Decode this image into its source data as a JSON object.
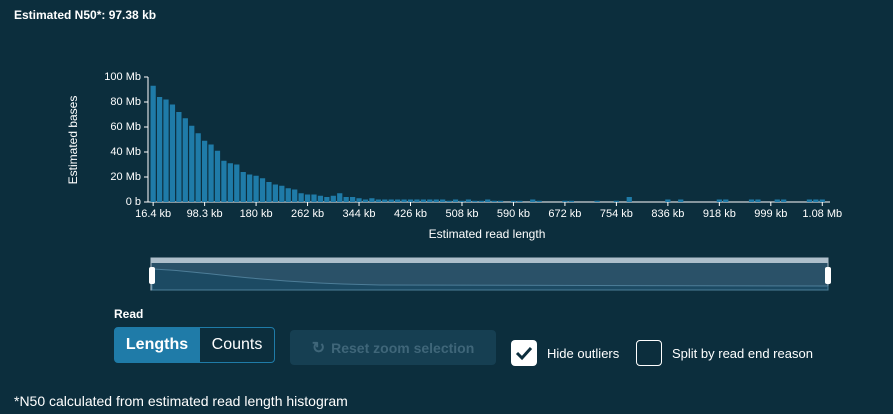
{
  "header": {
    "title": "Estimated N50*: 97.38 kb"
  },
  "chart_data": {
    "type": "histogram",
    "xlabel": "Estimated read length",
    "ylabel": "Estimated bases",
    "color": "#1f7ba8",
    "bins": [
      11264,
      21504,
      31744,
      41984,
      52224,
      62464,
      72704,
      82944,
      93184,
      103424,
      113664,
      123904,
      134144,
      144384,
      154624,
      164864,
      175104,
      185344,
      195584,
      205824,
      216064,
      226304,
      236544,
      246784,
      257024,
      267264,
      277504,
      287744,
      297984,
      308224,
      318464,
      328704,
      338944,
      349184,
      359424,
      369664,
      379904,
      390144,
      400384,
      410624,
      420864,
      431104,
      441344,
      451584,
      461824,
      472064,
      482304,
      492544,
      502784,
      513024,
      523264,
      533504,
      543744,
      553984,
      564224,
      574464,
      584704,
      594944,
      605184,
      615424,
      625664,
      635904,
      646144,
      656384,
      666624,
      676864,
      687104,
      697344,
      707584,
      717824,
      728064,
      738304,
      748544,
      758784,
      769024,
      779264,
      789504,
      799744,
      809984,
      820224,
      830464,
      840704,
      850944,
      861184,
      871424,
      881664,
      891904,
      902144,
      912384,
      922624,
      932864,
      943104,
      953344,
      963584,
      973824,
      984064,
      994304,
      1004544,
      1014784,
      1025024,
      1035264,
      1045504,
      1055744,
      1065984,
      1076224,
      1086464
    ],
    "values": [
      93000000,
      84000000,
      82000000,
      78000000,
      72000000,
      67000000,
      61000000,
      55000000,
      49000000,
      46000000,
      41000000,
      33000000,
      31000000,
      30000000,
      24000000,
      22000000,
      21000000,
      19000000,
      16000000,
      14000000,
      13000000,
      11000000,
      10000000,
      7000000,
      6000000,
      6000000,
      5000000,
      4000000,
      5000000,
      7000000,
      4000000,
      4000000,
      3000000,
      2000000,
      3000000,
      2000000,
      2000000,
      2000000,
      2000000,
      2000000,
      2000000,
      2000000,
      2000000,
      2000000,
      2000000,
      2000000,
      1000000,
      2000000,
      1000000,
      2000000,
      1000000,
      1000000,
      2000000,
      1000000,
      1000000,
      0,
      1000000,
      1000000,
      0,
      2000000,
      1000000,
      0,
      0,
      0,
      1000000,
      1000000,
      0,
      0,
      0,
      1000000,
      0,
      0,
      1000000,
      0,
      4000000,
      0,
      0,
      0,
      0,
      0,
      2000000,
      0,
      2000000,
      0,
      0,
      0,
      0,
      0,
      2000000,
      2000000,
      0,
      0,
      0,
      2000000,
      2000000,
      0,
      0,
      2000000,
      2000000,
      0,
      0,
      0,
      2000000,
      2000000,
      2000000
    ],
    "xlim": [
      8192,
      1093632
    ],
    "xticks": [
      {
        "value": 16384,
        "label": "16.4 kb"
      },
      {
        "value": 98304,
        "label": "98.3 kb"
      },
      {
        "value": 180224,
        "label": "180 kb"
      },
      {
        "value": 262144,
        "label": "262 kb"
      },
      {
        "value": 344064,
        "label": "344 kb"
      },
      {
        "value": 425984,
        "label": "426 kb"
      },
      {
        "value": 507904,
        "label": "508 kb"
      },
      {
        "value": 589824,
        "label": "590 kb"
      },
      {
        "value": 671744,
        "label": "672 kb"
      },
      {
        "value": 753664,
        "label": "754 kb"
      },
      {
        "value": 835584,
        "label": "836 kb"
      },
      {
        "value": 917504,
        "label": "918 kb"
      },
      {
        "value": 999424,
        "label": "999 kb"
      },
      {
        "value": 1081344,
        "label": "1.08 Mb"
      }
    ],
    "ylim": [
      0,
      100000000
    ],
    "yticks": [
      {
        "value": 0,
        "label": "0 b"
      },
      {
        "value": 20000000,
        "label": "20 Mb"
      },
      {
        "value": 40000000,
        "label": "40 Mb"
      },
      {
        "value": 60000000,
        "label": "60 Mb"
      },
      {
        "value": 80000000,
        "label": "80 Mb"
      },
      {
        "value": 100000000,
        "label": "100 Mb"
      }
    ]
  },
  "controls": {
    "group_label": "Read",
    "lengths": "Lengths",
    "counts": "Counts",
    "reset": "Reset zoom selection",
    "hide_outliers": "Hide outliers",
    "split": "Split by read end reason"
  },
  "footnote": "*N50 calculated from estimated read length histogram"
}
